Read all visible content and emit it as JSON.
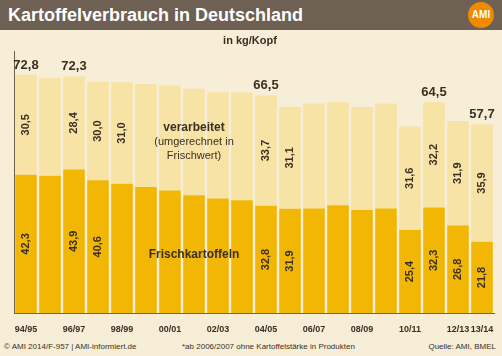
{
  "title": "Kartoffelverbrauch in Deutschland",
  "logo": "AMI",
  "chart_data": {
    "type": "bar",
    "subtitle": "in kg/Kopf",
    "stacked": true,
    "data_labels": true,
    "tick_labels": "x",
    "grid": false,
    "categories": [
      "94/95",
      null,
      "96/97",
      null,
      "98/99",
      null,
      "00/01",
      null,
      "02/03",
      null,
      "04/05",
      null,
      "06/07",
      null,
      "08/09",
      null,
      "10/11",
      null,
      "12/13",
      "13/14"
    ],
    "series": [
      {
        "name": "Frischkartoffeln",
        "color": "#f2b705",
        "values": [
          42.3,
          42.0,
          43.9,
          40.6,
          39.5,
          38.5,
          37.5,
          36.0,
          35.0,
          34.5,
          32.8,
          31.9,
          32.0,
          33.0,
          31.5,
          32.0,
          25.4,
          32.3,
          26.8,
          21.8
        ],
        "value_labels": [
          "42,3",
          null,
          "43,9",
          "40,6",
          null,
          null,
          null,
          null,
          null,
          null,
          "32,8",
          "31,9",
          null,
          null,
          null,
          null,
          "25,4",
          "32,3",
          "26,8",
          "21,8"
        ]
      },
      {
        "name": "verarbeitet (umgerechnet in Frischwert)",
        "color": "#f8e3a6",
        "values": [
          30.5,
          29.8,
          28.4,
          30.0,
          31.0,
          31.5,
          32.0,
          32.5,
          32.5,
          33.0,
          33.7,
          31.1,
          32.0,
          31.5,
          31.5,
          32.0,
          31.6,
          32.2,
          31.9,
          35.9
        ],
        "value_labels": [
          "30,5",
          null,
          "28,4",
          "30,0",
          "31,0",
          null,
          null,
          null,
          null,
          null,
          "33,7",
          "31,1",
          null,
          null,
          null,
          null,
          "31,6",
          "32,2",
          "31,9",
          "35,9"
        ]
      }
    ],
    "totals": [
      72.8,
      null,
      72.3,
      null,
      null,
      null,
      null,
      null,
      null,
      null,
      66.5,
      null,
      null,
      null,
      null,
      null,
      null,
      64.5,
      null,
      57.7
    ],
    "total_labels": [
      "72,8",
      null,
      "72,3",
      null,
      null,
      null,
      null,
      null,
      null,
      null,
      "66,5",
      null,
      null,
      null,
      null,
      null,
      null,
      "64,5",
      null,
      "57,7"
    ],
    "ylim": [
      0,
      80
    ],
    "yticks": []
  },
  "footer": {
    "left": "© AMI 2014/F-957 | AMI-informiert.de",
    "note": "*ab 2006/2007 ohne Kartoffelstärke in Produkten",
    "source": "Quelle: AMI, BMEL"
  }
}
